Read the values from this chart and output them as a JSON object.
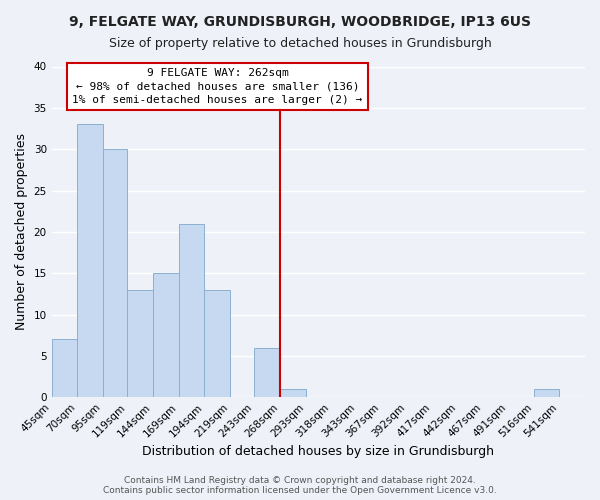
{
  "title1": "9, FELGATE WAY, GRUNDISBURGH, WOODBRIDGE, IP13 6US",
  "title2": "Size of property relative to detached houses in Grundisburgh",
  "xlabel": "Distribution of detached houses by size in Grundisburgh",
  "ylabel": "Number of detached properties",
  "bin_labels": [
    "45sqm",
    "70sqm",
    "95sqm",
    "119sqm",
    "144sqm",
    "169sqm",
    "194sqm",
    "219sqm",
    "243sqm",
    "268sqm",
    "293sqm",
    "318sqm",
    "343sqm",
    "367sqm",
    "392sqm",
    "417sqm",
    "442sqm",
    "467sqm",
    "491sqm",
    "516sqm",
    "541sqm"
  ],
  "bin_edges": [
    45,
    70,
    95,
    119,
    144,
    169,
    194,
    219,
    243,
    268,
    293,
    318,
    343,
    367,
    392,
    417,
    442,
    467,
    491,
    516,
    541,
    566
  ],
  "bar_heights": [
    7,
    33,
    30,
    13,
    15,
    21,
    13,
    0,
    6,
    1,
    0,
    0,
    0,
    0,
    0,
    0,
    0,
    0,
    0,
    1,
    0
  ],
  "bar_color": "#c6d9f0",
  "bar_edge_color": "#8ab0d0",
  "vline_x": 268,
  "vline_color": "#cc0000",
  "ylim": [
    0,
    40
  ],
  "yticks": [
    0,
    5,
    10,
    15,
    20,
    25,
    30,
    35,
    40
  ],
  "annotation_title": "9 FELGATE WAY: 262sqm",
  "annotation_line1": "← 98% of detached houses are smaller (136)",
  "annotation_line2": "1% of semi-detached houses are larger (2) →",
  "annotation_box_color": "#ffffff",
  "annotation_box_edge": "#cc0000",
  "footer1": "Contains HM Land Registry data © Crown copyright and database right 2024.",
  "footer2": "Contains public sector information licensed under the Open Government Licence v3.0.",
  "background_color": "#eef2f8",
  "grid_color": "#ffffff",
  "title1_fontsize": 10,
  "title2_fontsize": 9,
  "axis_label_fontsize": 9,
  "tick_fontsize": 7.5,
  "annotation_fontsize": 8,
  "footer_fontsize": 6.5
}
